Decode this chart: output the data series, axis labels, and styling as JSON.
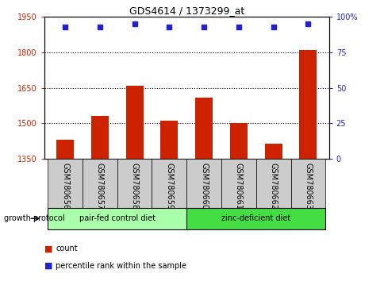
{
  "title": "GDS4614 / 1373299_at",
  "samples": [
    "GSM780656",
    "GSM780657",
    "GSM780658",
    "GSM780659",
    "GSM780660",
    "GSM780661",
    "GSM780662",
    "GSM780663"
  ],
  "counts": [
    1430,
    1530,
    1660,
    1510,
    1610,
    1500,
    1415,
    1810
  ],
  "percentiles": [
    93,
    93,
    95,
    93,
    93,
    93,
    93,
    95
  ],
  "ylim_left": [
    1350,
    1950
  ],
  "ylim_right": [
    0,
    100
  ],
  "yticks_left": [
    1350,
    1500,
    1650,
    1800,
    1950
  ],
  "yticks_right": [
    0,
    25,
    50,
    75,
    100
  ],
  "bar_color": "#cc2200",
  "dot_color": "#2222cc",
  "gridlines": [
    1800,
    1650,
    1500
  ],
  "group1_label": "pair-fed control diet",
  "group2_label": "zinc-deficient diet",
  "group1_color": "#aaffaa",
  "group2_color": "#44dd44",
  "xlabel_growth": "growth protocol",
  "legend_count": "count",
  "legend_percentile": "percentile rank within the sample",
  "tick_label_color_left": "#cc2200",
  "tick_label_color_right": "#2222cc",
  "bar_width": 0.5,
  "title_fontsize": 9,
  "tick_fontsize": 7,
  "label_fontsize": 7,
  "group_label_fontsize": 7,
  "legend_fontsize": 7
}
